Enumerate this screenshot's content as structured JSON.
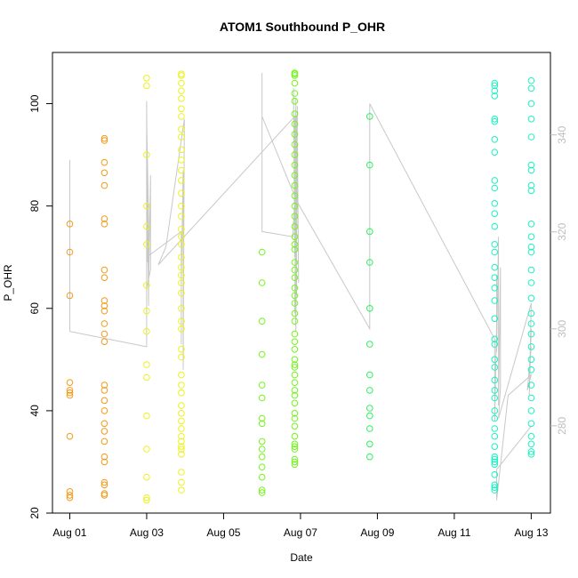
{
  "chart_data": {
    "type": "scatter",
    "title": "ATOM1 Southbound P_OHR",
    "xlabel": "Date",
    "ylabel": "P_OHR",
    "x_ticks": [
      "Aug 01",
      "Aug 03",
      "Aug 05",
      "Aug 07",
      "Aug 09",
      "Aug 11",
      "Aug 13"
    ],
    "x_tick_days": [
      1,
      3,
      5,
      7,
      9,
      11,
      13
    ],
    "xlim": [
      0.55,
      13.5
    ],
    "ylim": [
      20,
      110
    ],
    "y_ticks": [
      20,
      40,
      60,
      80,
      100
    ],
    "y2_ticks": [
      280,
      300,
      320,
      340
    ],
    "y2lim": [
      262,
      357
    ],
    "grid": false,
    "point_style": "open-circle",
    "line_color": "#c8c8c8",
    "groups": [
      {
        "day": 1.0,
        "color": "#f39a1a",
        "values": [
          23,
          23.5,
          24.2,
          35,
          43,
          43.5,
          44,
          45.5,
          62.5,
          71,
          76.5
        ]
      },
      {
        "day": 1.9,
        "color": "#f39a1a",
        "values": [
          23.5,
          23.8,
          25.5,
          26,
          30,
          31,
          34,
          36,
          37.5,
          40,
          42,
          44,
          45,
          53.5,
          55,
          57,
          59.5,
          60.5,
          61.5,
          66,
          67.5,
          76.5,
          77.5,
          84,
          86.5,
          88.5,
          92.8,
          93.2
        ]
      },
      {
        "day": 3.0,
        "color": "#ecf21c",
        "values": [
          22.5,
          23,
          27,
          32.5,
          39,
          46.5,
          49,
          55.5,
          59.5,
          64.5,
          72.5,
          76,
          80,
          90,
          103.5,
          105
        ]
      },
      {
        "day": 3.9,
        "color": "#ecf21c",
        "values": [
          24.5,
          26,
          28,
          31.5,
          32.5,
          33,
          34,
          35,
          36.5,
          38,
          39.5,
          41,
          43.5,
          45,
          47,
          50.5,
          52,
          56,
          57.5,
          60,
          63,
          65,
          66.5,
          68,
          70,
          72.5,
          74,
          75.5,
          78,
          80,
          82.5,
          85,
          87,
          89,
          91,
          93.5,
          95,
          97.5,
          99,
          101,
          102.5,
          104,
          105.5,
          105.8
        ]
      },
      {
        "day": 6.0,
        "color": "#74f51c",
        "values": [
          24,
          24.5,
          27,
          29,
          31,
          32.5,
          34,
          37.5,
          38.5,
          42.5,
          45,
          51,
          57.5,
          65,
          71
        ]
      },
      {
        "day": 6.85,
        "color": "#74f51c",
        "values": [
          29.5,
          30,
          30.5,
          32.5,
          33,
          33.5,
          35,
          37,
          38.5,
          39.5,
          41.5,
          43,
          44,
          45.5,
          47,
          48.5,
          49,
          50,
          52,
          53.5,
          55,
          57.5,
          59,
          61,
          62.5,
          64,
          66,
          67.5,
          69,
          71.5,
          72.5,
          74,
          76,
          78,
          80,
          82,
          84,
          86,
          88,
          90,
          92,
          94,
          96,
          98,
          100.5,
          102,
          104,
          105.5,
          105.8,
          106
        ]
      },
      {
        "day": 8.8,
        "color": "#2af25c",
        "values": [
          31,
          33.5,
          36.5,
          39,
          40.5,
          44,
          47,
          53,
          60,
          69,
          75,
          88,
          97.5
        ]
      },
      {
        "day": 12.05,
        "color": "#1cf2c0",
        "values": [
          24.5,
          25,
          25.5,
          27.5,
          29.5,
          30,
          30.5,
          31,
          33,
          35,
          36.5,
          38.5,
          40,
          42.5,
          44,
          46,
          48.5,
          50,
          53,
          54,
          58,
          61.5,
          64,
          66,
          68,
          71,
          72.5,
          76,
          78.5,
          80.5,
          83.5,
          85,
          90.5,
          93,
          96.5,
          97,
          101.5,
          102.5,
          103.5,
          104
        ]
      },
      {
        "day": 13.0,
        "color": "#1cf2c0",
        "values": [
          31.5,
          32,
          33.5,
          35,
          37.5,
          40,
          42.5,
          45,
          48,
          50,
          52.5,
          55,
          57,
          59,
          62,
          65,
          67.5,
          71,
          72,
          74,
          76.5,
          83,
          84,
          87,
          88,
          93.5,
          97,
          100,
          103,
          104.5
        ]
      }
    ],
    "line_path": [
      [
        1.0,
        89
      ],
      [
        1.0,
        55.5
      ],
      [
        3.0,
        52.5
      ],
      [
        3.0,
        100.5
      ],
      [
        3.02,
        69
      ],
      [
        3.05,
        71
      ],
      [
        3.05,
        60.5
      ],
      [
        3.0,
        97
      ],
      [
        3.05,
        77
      ],
      [
        3.05,
        64
      ],
      [
        3.1,
        86
      ],
      [
        3.1,
        67.5
      ],
      [
        3.0,
        64
      ],
      [
        3.0,
        70
      ],
      [
        3.9,
        75
      ],
      [
        3.9,
        53
      ],
      [
        3.9,
        65.5
      ],
      [
        3.95,
        87
      ],
      [
        3.95,
        48
      ],
      [
        3.98,
        97
      ],
      [
        3.5,
        72
      ],
      [
        3.3,
        68.5
      ],
      [
        6.85,
        97.5
      ],
      [
        6.9,
        62.5
      ],
      [
        6.88,
        101
      ],
      [
        6.85,
        70
      ],
      [
        6.82,
        103
      ],
      [
        6.88,
        55.5
      ],
      [
        6.92,
        99.5
      ],
      [
        6.85,
        59
      ],
      [
        6.9,
        97.5
      ],
      [
        6.95,
        65
      ],
      [
        6.92,
        92
      ],
      [
        6.8,
        74
      ],
      [
        6.0,
        75
      ],
      [
        6.0,
        106
      ],
      [
        6.0,
        97.5
      ],
      [
        6.9,
        81
      ],
      [
        8.8,
        56
      ],
      [
        8.8,
        100
      ],
      [
        12.05,
        54
      ],
      [
        12.05,
        38
      ],
      [
        12.1,
        57
      ],
      [
        12.1,
        66.5
      ],
      [
        12.1,
        51.5
      ],
      [
        12.15,
        74
      ],
      [
        12.15,
        41
      ],
      [
        12.2,
        68
      ],
      [
        12.2,
        44.5
      ],
      [
        12.15,
        38.5
      ],
      [
        13.0,
        61
      ],
      [
        12.95,
        43
      ],
      [
        13.0,
        56
      ],
      [
        12.95,
        47.5
      ],
      [
        13.0,
        52.5
      ],
      [
        12.9,
        44
      ],
      [
        13.0,
        47
      ],
      [
        12.4,
        43
      ],
      [
        12.1,
        22.5
      ],
      [
        12.1,
        28.5
      ],
      [
        13.0,
        37
      ]
    ]
  }
}
